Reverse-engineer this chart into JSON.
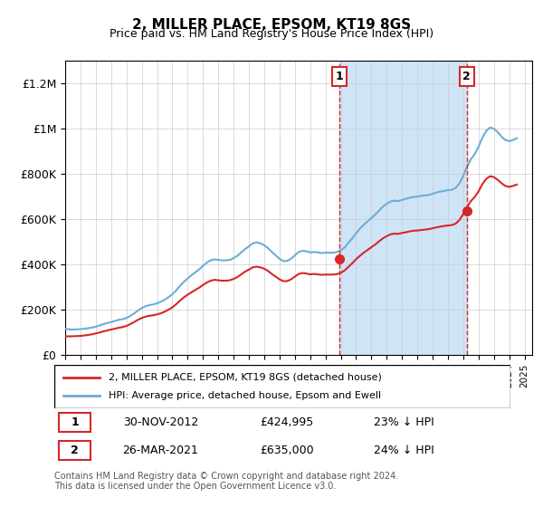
{
  "title": "2, MILLER PLACE, EPSOM, KT19 8GS",
  "subtitle": "Price paid vs. HM Land Registry's House Price Index (HPI)",
  "hpi_color": "#6baed6",
  "price_color": "#d62728",
  "shaded_color": "#d0e4f7",
  "vline_color": "#d62728",
  "annotation_box_color": "#d62728",
  "background_color": "#ffffff",
  "ylabel": "",
  "ylim": [
    0,
    1300000
  ],
  "yticks": [
    0,
    200000,
    400000,
    600000,
    800000,
    1000000,
    1200000
  ],
  "ytick_labels": [
    "£0",
    "£200K",
    "£400K",
    "£600K",
    "£800K",
    "£1M",
    "£1.2M"
  ],
  "legend_entries": [
    "2, MILLER PLACE, EPSOM, KT19 8GS (detached house)",
    "HPI: Average price, detached house, Epsom and Ewell"
  ],
  "transaction1_date": "30-NOV-2012",
  "transaction1_price": "£424,995",
  "transaction1_pct": "23% ↓ HPI",
  "transaction1_x": 2012.92,
  "transaction1_y": 424995,
  "transaction2_date": "26-MAR-2021",
  "transaction2_price": "£635,000",
  "transaction2_pct": "24% ↓ HPI",
  "transaction2_x": 2021.23,
  "transaction2_y": 635000,
  "footer": "Contains HM Land Registry data © Crown copyright and database right 2024.\nThis data is licensed under the Open Government Licence v3.0.",
  "xmin": 1995,
  "xmax": 2025.5,
  "hpi_data": {
    "x": [
      1995.0,
      1995.25,
      1995.5,
      1995.75,
      1996.0,
      1996.25,
      1996.5,
      1996.75,
      1997.0,
      1997.25,
      1997.5,
      1997.75,
      1998.0,
      1998.25,
      1998.5,
      1998.75,
      1999.0,
      1999.25,
      1999.5,
      1999.75,
      2000.0,
      2000.25,
      2000.5,
      2000.75,
      2001.0,
      2001.25,
      2001.5,
      2001.75,
      2002.0,
      2002.25,
      2002.5,
      2002.75,
      2003.0,
      2003.25,
      2003.5,
      2003.75,
      2004.0,
      2004.25,
      2004.5,
      2004.75,
      2005.0,
      2005.25,
      2005.5,
      2005.75,
      2006.0,
      2006.25,
      2006.5,
      2006.75,
      2007.0,
      2007.25,
      2007.5,
      2007.75,
      2008.0,
      2008.25,
      2008.5,
      2008.75,
      2009.0,
      2009.25,
      2009.5,
      2009.75,
      2010.0,
      2010.25,
      2010.5,
      2010.75,
      2011.0,
      2011.25,
      2011.5,
      2011.75,
      2012.0,
      2012.25,
      2012.5,
      2012.75,
      2013.0,
      2013.25,
      2013.5,
      2013.75,
      2014.0,
      2014.25,
      2014.5,
      2014.75,
      2015.0,
      2015.25,
      2015.5,
      2015.75,
      2016.0,
      2016.25,
      2016.5,
      2016.75,
      2017.0,
      2017.25,
      2017.5,
      2017.75,
      2018.0,
      2018.25,
      2018.5,
      2018.75,
      2019.0,
      2019.25,
      2019.5,
      2019.75,
      2020.0,
      2020.25,
      2020.5,
      2020.75,
      2021.0,
      2021.25,
      2021.5,
      2021.75,
      2022.0,
      2022.25,
      2022.5,
      2022.75,
      2023.0,
      2023.25,
      2023.5,
      2023.75,
      2024.0,
      2024.25,
      2024.5
    ],
    "y": [
      115000,
      113000,
      112000,
      113000,
      114000,
      116000,
      118000,
      121000,
      125000,
      130000,
      136000,
      141000,
      145000,
      150000,
      155000,
      158000,
      163000,
      172000,
      183000,
      196000,
      207000,
      215000,
      220000,
      223000,
      228000,
      235000,
      244000,
      255000,
      268000,
      285000,
      305000,
      323000,
      338000,
      352000,
      365000,
      378000,
      393000,
      408000,
      418000,
      422000,
      420000,
      418000,
      418000,
      420000,
      428000,
      438000,
      453000,
      468000,
      480000,
      493000,
      497000,
      493000,
      485000,
      472000,
      455000,
      440000,
      425000,
      415000,
      415000,
      425000,
      440000,
      455000,
      460000,
      458000,
      453000,
      455000,
      453000,
      450000,
      452000,
      452000,
      452000,
      455000,
      462000,
      475000,
      495000,
      515000,
      538000,
      558000,
      575000,
      590000,
      605000,
      620000,
      638000,
      655000,
      668000,
      678000,
      682000,
      680000,
      685000,
      690000,
      695000,
      698000,
      700000,
      703000,
      705000,
      707000,
      712000,
      718000,
      722000,
      725000,
      728000,
      730000,
      738000,
      758000,
      792000,
      832000,
      865000,
      888000,
      920000,
      960000,
      990000,
      1005000,
      1000000,
      985000,
      965000,
      950000,
      945000,
      950000,
      958000
    ]
  },
  "price_data": {
    "x": [
      1995.0,
      1995.25,
      1995.5,
      1995.75,
      1996.0,
      1996.25,
      1996.5,
      1996.75,
      1997.0,
      1997.25,
      1997.5,
      1997.75,
      1998.0,
      1998.25,
      1998.5,
      1998.75,
      1999.0,
      1999.25,
      1999.5,
      1999.75,
      2000.0,
      2000.25,
      2000.5,
      2000.75,
      2001.0,
      2001.25,
      2001.5,
      2001.75,
      2002.0,
      2002.25,
      2002.5,
      2002.75,
      2003.0,
      2003.25,
      2003.5,
      2003.75,
      2004.0,
      2004.25,
      2004.5,
      2004.75,
      2005.0,
      2005.25,
      2005.5,
      2005.75,
      2006.0,
      2006.25,
      2006.5,
      2006.75,
      2007.0,
      2007.25,
      2007.5,
      2007.75,
      2008.0,
      2008.25,
      2008.5,
      2008.75,
      2009.0,
      2009.25,
      2009.5,
      2009.75,
      2010.0,
      2010.25,
      2010.5,
      2010.75,
      2011.0,
      2011.25,
      2011.5,
      2011.75,
      2012.0,
      2012.25,
      2012.5,
      2012.75,
      2013.0,
      2013.25,
      2013.5,
      2013.75,
      2014.0,
      2014.25,
      2014.5,
      2014.75,
      2015.0,
      2015.25,
      2015.5,
      2015.75,
      2016.0,
      2016.25,
      2016.5,
      2016.75,
      2017.0,
      2017.25,
      2017.5,
      2017.75,
      2018.0,
      2018.25,
      2018.5,
      2018.75,
      2019.0,
      2019.25,
      2019.5,
      2019.75,
      2020.0,
      2020.25,
      2020.5,
      2020.75,
      2021.0,
      2021.25,
      2021.5,
      2021.75,
      2022.0,
      2022.25,
      2022.5,
      2022.75,
      2023.0,
      2023.25,
      2023.5,
      2023.75,
      2024.0,
      2024.25,
      2024.5
    ],
    "y": [
      82000,
      82000,
      82500,
      83000,
      84000,
      86000,
      88000,
      91000,
      95000,
      99000,
      104000,
      108000,
      112000,
      116000,
      120000,
      123000,
      128000,
      136000,
      145000,
      155000,
      163000,
      169000,
      173000,
      175000,
      179000,
      184000,
      191000,
      200000,
      210000,
      224000,
      240000,
      254000,
      266000,
      277000,
      287000,
      297000,
      309000,
      320000,
      328000,
      332000,
      330000,
      328000,
      328000,
      330000,
      336000,
      344000,
      356000,
      368000,
      377000,
      387000,
      390000,
      387000,
      381000,
      371000,
      358000,
      346000,
      334000,
      326000,
      326000,
      334000,
      346000,
      358000,
      362000,
      360000,
      356000,
      358000,
      356000,
      354000,
      355000,
      355000,
      355000,
      357000,
      363000,
      373000,
      389000,
      405000,
      423000,
      438000,
      452000,
      464000,
      476000,
      488000,
      502000,
      515000,
      525000,
      533000,
      536000,
      535000,
      539000,
      542000,
      546000,
      549000,
      550000,
      552000,
      554000,
      556000,
      560000,
      564000,
      567000,
      570000,
      572000,
      574000,
      580000,
      596000,
      623000,
      654000,
      680000,
      698000,
      723000,
      755000,
      778000,
      790000,
      786000,
      774000,
      759000,
      747000,
      743000,
      747000,
      753000
    ]
  }
}
